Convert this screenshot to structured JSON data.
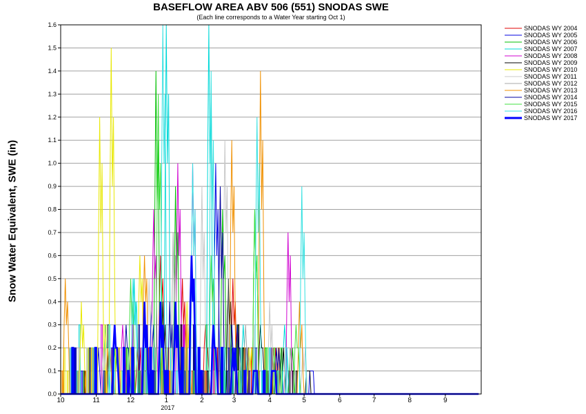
{
  "chart_data": {
    "type": "line",
    "title": "BASEFLOW AREA ABV 506 (551) SNODAS SWE",
    "subtitle": "(Each line corresponds to a Water Year starting Oct 1)",
    "ylabel": "Snow Water Equivalent, SWE (in)",
    "xlabel": "",
    "x_ticks": [
      "10",
      "11",
      "12",
      "2017",
      "2",
      "3",
      "4",
      "5",
      "6",
      "7",
      "8",
      "9"
    ],
    "x_year_label": "2017",
    "y_ticks": [
      "0.0",
      "0.1",
      "0.2",
      "0.3",
      "0.4",
      "0.5",
      "0.6",
      "0.7",
      "0.8",
      "0.9",
      "1.0",
      "1.1",
      "1.2",
      "1.3",
      "1.4",
      "1.5",
      "1.6"
    ],
    "ylim": [
      0,
      1.6
    ],
    "grid": true,
    "legend_position": "right",
    "series": [
      {
        "name": "SNODAS WY 2004",
        "color": "#e00000",
        "peaks": [
          [
            "2017-12-08",
            0.2
          ],
          [
            "2017-12-28",
            0.6
          ],
          [
            "2017-01-16",
            0.5
          ],
          [
            "2017-02-05",
            0.3
          ],
          [
            "2017-03-01",
            0.5
          ],
          [
            "2017-04-05",
            0.2
          ]
        ]
      },
      {
        "name": "SNODAS WY 2005",
        "color": "#0000e0",
        "peaks": [
          [
            "2017-11-02",
            0.2
          ],
          [
            "2017-12-20",
            0.4
          ],
          [
            "2017-02-14",
            1.0
          ],
          [
            "2017-02-28",
            0.3
          ],
          [
            "2017-04-10",
            0.2
          ],
          [
            "2017-05-08",
            0.1
          ]
        ]
      },
      {
        "name": "SNODAS WY 2006",
        "color": "#00c000",
        "peaks": [
          [
            "2017-11-18",
            0.2
          ],
          [
            "2017-12-24",
            1.4
          ],
          [
            "2017-01-10",
            0.9
          ],
          [
            "2017-02-20",
            0.8
          ],
          [
            "2017-03-20",
            0.8
          ],
          [
            "2017-04-20",
            0.2
          ]
        ]
      },
      {
        "name": "SNODAS WY 2007",
        "color": "#00d8d8",
        "peaks": [
          [
            "2017-11-10",
            0.3
          ],
          [
            "2017-12-05",
            0.5
          ],
          [
            "2017-01-02",
            1.6
          ],
          [
            "2017-02-08",
            1.6
          ],
          [
            "2017-03-10",
            0.3
          ],
          [
            "2017-04-15",
            0.3
          ]
        ]
      },
      {
        "name": "SNODAS WY 2008",
        "color": "#d000d0",
        "peaks": [
          [
            "2017-11-25",
            0.3
          ],
          [
            "2017-12-22",
            0.8
          ],
          [
            "2017-01-12",
            1.0
          ],
          [
            "2017-01-25",
            1.0
          ],
          [
            "2017-03-05",
            0.3
          ],
          [
            "2017-04-18",
            0.7
          ]
        ]
      },
      {
        "name": "SNODAS WY 2009",
        "color": "#000000",
        "peaks": [
          [
            "2017-12-30",
            0.4
          ],
          [
            "2017-02-25",
            0.5
          ],
          [
            "2017-03-25",
            0.3
          ],
          [
            "2017-04-12",
            0.2
          ],
          [
            "2017-05-05",
            0.1
          ]
        ]
      },
      {
        "name": "SNODAS WY 2010",
        "color": "#e8e800",
        "peaks": [
          [
            "2017-10-20",
            0.4
          ],
          [
            "2017-11-05",
            1.2
          ],
          [
            "2017-11-15",
            1.5
          ],
          [
            "2017-12-10",
            0.6
          ],
          [
            "2017-01-20",
            0.4
          ],
          [
            "2017-03-15",
            0.2
          ]
        ]
      },
      {
        "name": "SNODAS WY 2011",
        "color": "#c8c8c8",
        "peaks": [
          [
            "2017-11-08",
            0.2
          ],
          [
            "2017-12-18",
            0.5
          ],
          [
            "2017-02-02",
            0.9
          ],
          [
            "2017-02-22",
            1.1
          ],
          [
            "2017-04-02",
            0.4
          ],
          [
            "2017-05-01",
            0.2
          ]
        ]
      },
      {
        "name": "SNODAS WY 2012",
        "color": "#a8a8a8",
        "peaks": [
          [
            "2017-11-20",
            0.1
          ],
          [
            "2017-01-08",
            0.7
          ],
          [
            "2017-02-18",
            0.9
          ],
          [
            "2017-03-12",
            0.3
          ]
        ]
      },
      {
        "name": "SNODAS WY 2013",
        "color": "#f09000",
        "peaks": [
          [
            "2017-10-06",
            0.5
          ],
          [
            "2017-11-12",
            0.2
          ],
          [
            "2017-12-14",
            0.6
          ],
          [
            "2017-02-28",
            1.1
          ],
          [
            "2017-03-25",
            1.4
          ],
          [
            "2017-04-28",
            0.4
          ]
        ]
      },
      {
        "name": "SNODAS WY 2014",
        "color": "#0000a0",
        "peaks": [
          [
            "2017-11-28",
            0.3
          ],
          [
            "2017-01-05",
            0.4
          ],
          [
            "2017-02-18",
            0.9
          ],
          [
            "2017-03-05",
            0.3
          ],
          [
            "2017-04-08",
            0.2
          ]
        ]
      },
      {
        "name": "SNODAS WY 2015",
        "color": "#40e040",
        "peaks": [
          [
            "2017-12-02",
            0.5
          ],
          [
            "2017-12-26",
            1.3
          ],
          [
            "2017-02-10",
            0.6
          ],
          [
            "2017-03-20",
            0.8
          ],
          [
            "2017-04-25",
            0.3
          ]
        ]
      },
      {
        "name": "SNODAS WY 2016",
        "color": "#30e0e0",
        "peaks": [
          [
            "2017-12-04",
            0.5
          ],
          [
            "2017-12-30",
            1.6
          ],
          [
            "2017-01-25",
            1.0
          ],
          [
            "2017-02-10",
            1.4
          ],
          [
            "2017-03-22",
            1.2
          ],
          [
            "2017-04-30",
            0.9
          ]
        ]
      },
      {
        "name": "SNODAS WY 2017",
        "color": "#0000ff",
        "bold": true,
        "peaks": [
          [
            "2017-11-18",
            0.3
          ],
          [
            "2017-12-14",
            0.4
          ],
          [
            "2017-12-28",
            0.4
          ],
          [
            "2017-01-10",
            0.4
          ],
          [
            "2017-01-24",
            0.6
          ],
          [
            "2017-02-12",
            0.3
          ],
          [
            "2017-03-01",
            0.2
          ],
          [
            "2017-03-20",
            0.1
          ],
          [
            "2017-04-05",
            0.1
          ]
        ]
      }
    ]
  }
}
